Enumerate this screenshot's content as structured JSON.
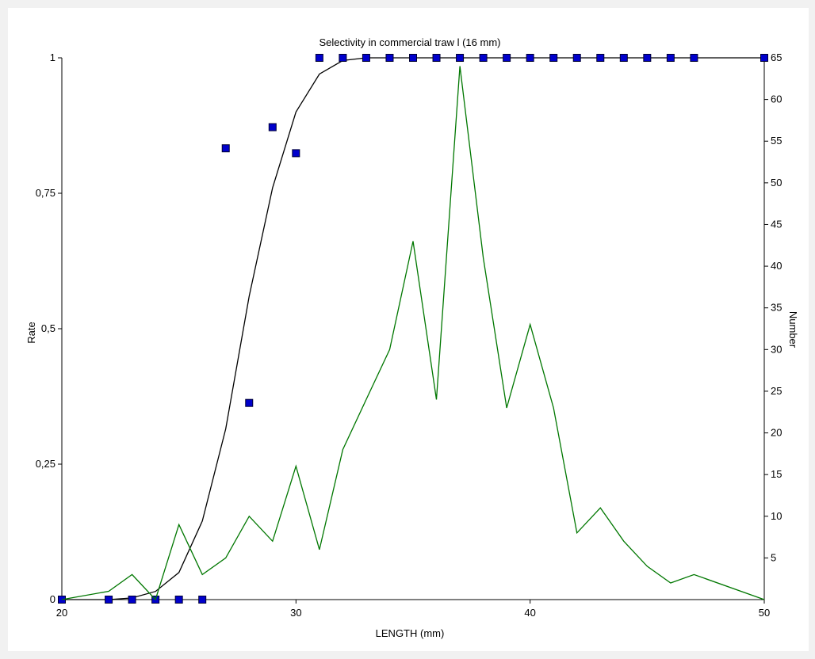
{
  "chart_data": {
    "type": "line",
    "title": "Selectivity in commercial traw l (16 mm)",
    "xlabel": "LENGTH (mm)",
    "ylabel_left": "Rate",
    "ylabel_right": "Number",
    "xlim": [
      20,
      50
    ],
    "ylim_left": [
      0,
      1
    ],
    "ylim_right": [
      0,
      65
    ],
    "x_ticks": [
      20,
      30,
      40,
      50
    ],
    "y_ticks_left": [
      {
        "value": 0,
        "label": "0"
      },
      {
        "value": 0.25,
        "label": "0,25"
      },
      {
        "value": 0.5,
        "label": "0,5"
      },
      {
        "value": 0.75,
        "label": "0,75"
      },
      {
        "value": 1,
        "label": "1"
      }
    ],
    "y_ticks_right": [
      5,
      10,
      15,
      20,
      25,
      30,
      35,
      40,
      45,
      50,
      55,
      60,
      65
    ],
    "grid": false,
    "legend": "none",
    "series": [
      {
        "axis": "left",
        "style": "line",
        "color": "#000000",
        "x": [
          20,
          21,
          22,
          23,
          24,
          25,
          26,
          27,
          28,
          29,
          30,
          31,
          32,
          33,
          34,
          35,
          36,
          37,
          38,
          39,
          40,
          41,
          42,
          43,
          44,
          45,
          46,
          47,
          48,
          49,
          50
        ],
        "y": [
          0.0,
          0.0,
          0.0,
          0.003,
          0.015,
          0.05,
          0.145,
          0.315,
          0.56,
          0.76,
          0.9,
          0.97,
          0.995,
          1,
          1,
          1,
          1,
          1,
          1,
          1,
          1,
          1,
          1,
          1,
          1,
          1,
          1,
          1,
          1,
          1,
          1
        ]
      },
      {
        "axis": "left",
        "style": "marker",
        "color": "#0000cc",
        "x": [
          20,
          22,
          23,
          24,
          25,
          26,
          27,
          28,
          29,
          30,
          31,
          32,
          33,
          34,
          35,
          36,
          37,
          38,
          39,
          40,
          41,
          42,
          43,
          44,
          45,
          46,
          47,
          50
        ],
        "y": [
          0,
          0,
          0,
          0,
          0,
          0,
          0.833,
          0.363,
          0.872,
          0.824,
          1,
          1,
          1,
          1,
          1,
          1,
          1,
          1,
          1,
          1,
          1,
          1,
          1,
          1,
          1,
          1,
          1,
          1
        ]
      },
      {
        "axis": "right",
        "style": "line",
        "color": "#007700",
        "x": [
          20,
          22,
          23,
          24,
          25,
          26,
          27,
          28,
          29,
          30,
          31,
          32,
          33,
          34,
          35,
          36,
          37,
          38,
          39,
          40,
          41,
          42,
          43,
          44,
          45,
          46,
          47,
          50
        ],
        "y": [
          0,
          1,
          3,
          0,
          9,
          3,
          5,
          10,
          7,
          16,
          6,
          18,
          24,
          30,
          43,
          24,
          64,
          41,
          23,
          33,
          23,
          8,
          11,
          7,
          4,
          2,
          3,
          0
        ]
      }
    ]
  }
}
